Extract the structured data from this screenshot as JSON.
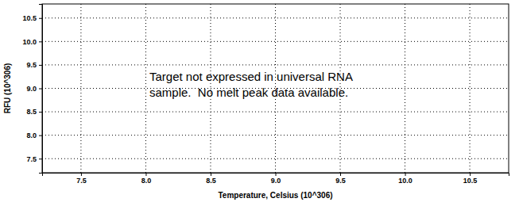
{
  "chart_data": {
    "type": "line",
    "x_label": "Temperature, Celsius (10^306)",
    "y_label": "RFU (10^306)",
    "annotation": [
      "Target not expressed in universal RNA",
      "sample.  No melt peak data available."
    ],
    "xlim": [
      7.2,
      10.8
    ],
    "xticks": [
      7.5,
      {
        "value": 8,
        "label": "8.0"
      },
      8.5,
      {
        "value": 9,
        "label": "9.0"
      },
      9.5,
      {
        "value": 10,
        "label": "10.0"
      },
      10.5
    ],
    "ylim": [
      7.2,
      10.8
    ],
    "yticks": [
      7.5,
      {
        "value": 8,
        "label": "8.0"
      },
      8.5,
      {
        "value": 9,
        "label": "9.0"
      },
      9.5,
      {
        "value": 10,
        "label": "10.0"
      },
      10.5
    ],
    "grid": true
  }
}
